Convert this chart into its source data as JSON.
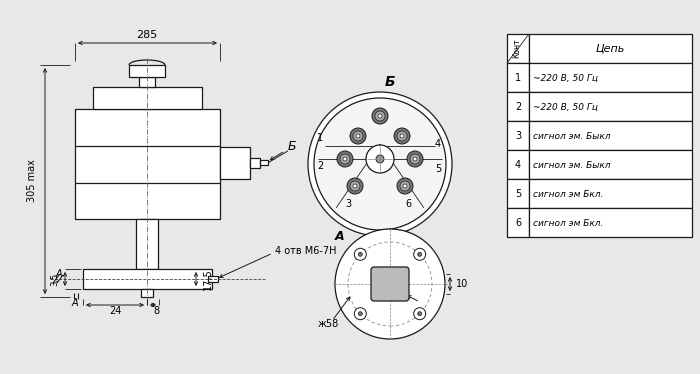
{
  "bg_color": "#e8e8e8",
  "line_color": "#1a1a1a",
  "white": "#ffffff",
  "gray_fill": "#cccccc",
  "dark_fill": "#555555",
  "table_rows": [
    [
      "1",
      "~220 В, 50 Гц"
    ],
    [
      "2",
      "~220 В, 50 Гц"
    ],
    [
      "3",
      "сигнол эм. Быкл"
    ],
    [
      "4",
      "сигнол эм. Быкл"
    ],
    [
      "5",
      "сигнол эм Бкл."
    ],
    [
      "6",
      "сигнол эм Бкл."
    ]
  ],
  "dim_285": "285",
  "dim_305": "305 max",
  "dim_17_5": "17,5",
  "dim_3_5": "3,5",
  "dim_24": "24",
  "dim_8": "8",
  "dim_4otv": "4 отв М6-7Н",
  "dim_phi58": "ж58",
  "dim_10": "10",
  "label_B": "Б",
  "label_A": "А"
}
